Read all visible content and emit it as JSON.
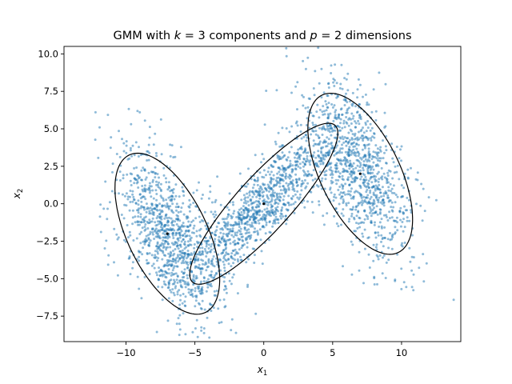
{
  "chart_data": {
    "type": "scatter",
    "title": "GMM with k = 3 components and p = 2 dimensions",
    "title_parts": {
      "prefix": "GMM with ",
      "k_symbol": "k",
      "k_value": " = 3 components and ",
      "p_symbol": "p",
      "p_value": " = 2 dimensions"
    },
    "xlabel": {
      "symbol": "x",
      "subscript": "1"
    },
    "ylabel": {
      "symbol": "x",
      "subscript": "2"
    },
    "xlim": [
      -14.5,
      14.3
    ],
    "ylim": [
      -9.2,
      10.5
    ],
    "xticks": [
      -10,
      -5,
      0,
      5,
      10
    ],
    "xtick_labels": [
      "−10",
      "−5",
      "0",
      "5",
      "10"
    ],
    "yticks": [
      -7.5,
      -5.0,
      -2.5,
      0.0,
      2.5,
      5.0,
      7.5,
      10.0
    ],
    "ytick_labels": [
      "−7.5",
      "−5.0",
      "−2.5",
      "0.0",
      "2.5",
      "5.0",
      "7.5",
      "10.0"
    ],
    "grid": false,
    "point_color": "#1f77b4",
    "ellipse_color": "#000000",
    "components": [
      {
        "mean": [
          -7,
          -2
        ],
        "cov": [
          [
            4.0,
            -3.2
          ],
          [
            -3.2,
            8.0
          ]
        ],
        "n": 1000
      },
      {
        "mean": [
          0,
          0
        ],
        "cov": [
          [
            8.0,
            7.0
          ],
          [
            7.0,
            8.0
          ]
        ],
        "n": 1000
      },
      {
        "mean": [
          7,
          2
        ],
        "cov": [
          [
            4.0,
            -3.2
          ],
          [
            -3.2,
            8.0
          ]
        ],
        "n": 1000
      }
    ],
    "ellipse_scale": 1.9,
    "points_per_component_sample": 1000
  }
}
